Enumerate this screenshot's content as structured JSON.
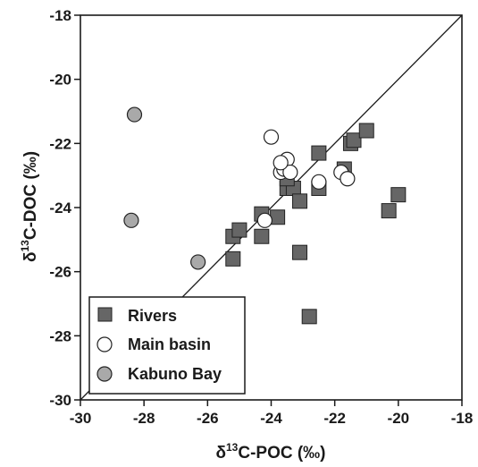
{
  "chart_data": {
    "type": "scatter",
    "xlabel": {
      "prefix": "δ",
      "sup": "13",
      "main": "C-POC (‰)"
    },
    "ylabel": {
      "prefix": "δ",
      "sup": "13",
      "main": "C-DOC (‰)"
    },
    "xlim": [
      -30,
      -18
    ],
    "ylim": [
      -30,
      -18
    ],
    "xticks": [
      -30,
      -28,
      -26,
      -24,
      -22,
      -20,
      -18
    ],
    "yticks": [
      -30,
      -28,
      -26,
      -24,
      -22,
      -20,
      -18
    ],
    "reference_line": "1:1",
    "legend_position": "bottom-left",
    "series": [
      {
        "name": "Rivers",
        "marker": "square",
        "color": "#666666",
        "points": [
          [
            -25.2,
            -24.9
          ],
          [
            -25.0,
            -24.7
          ],
          [
            -24.3,
            -24.2
          ],
          [
            -24.3,
            -24.9
          ],
          [
            -25.2,
            -25.6
          ],
          [
            -23.8,
            -24.3
          ],
          [
            -23.5,
            -23.4
          ],
          [
            -23.3,
            -23.4
          ],
          [
            -23.5,
            -23.1
          ],
          [
            -23.1,
            -23.8
          ],
          [
            -23.1,
            -25.4
          ],
          [
            -22.8,
            -27.4
          ],
          [
            -22.5,
            -22.3
          ],
          [
            -22.5,
            -23.4
          ],
          [
            -21.7,
            -22.8
          ],
          [
            -21.5,
            -22.0
          ],
          [
            -21.4,
            -21.9
          ],
          [
            -21.0,
            -21.6
          ],
          [
            -20.0,
            -23.6
          ],
          [
            -20.3,
            -24.1
          ]
        ]
      },
      {
        "name": "Main basin",
        "marker": "circle",
        "color": "#ffffff",
        "points": [
          [
            -24.0,
            -21.8
          ],
          [
            -23.7,
            -22.9
          ],
          [
            -23.6,
            -22.8
          ],
          [
            -23.5,
            -22.5
          ],
          [
            -23.4,
            -22.9
          ],
          [
            -23.7,
            -22.6
          ],
          [
            -22.5,
            -23.2
          ],
          [
            -21.8,
            -22.9
          ],
          [
            -21.6,
            -23.1
          ],
          [
            -24.2,
            -24.4
          ]
        ]
      },
      {
        "name": "Kabuno Bay",
        "marker": "circle",
        "color": "#a9a9a9",
        "points": [
          [
            -28.3,
            -21.1
          ],
          [
            -28.4,
            -24.4
          ],
          [
            -26.3,
            -25.7
          ]
        ]
      }
    ]
  }
}
